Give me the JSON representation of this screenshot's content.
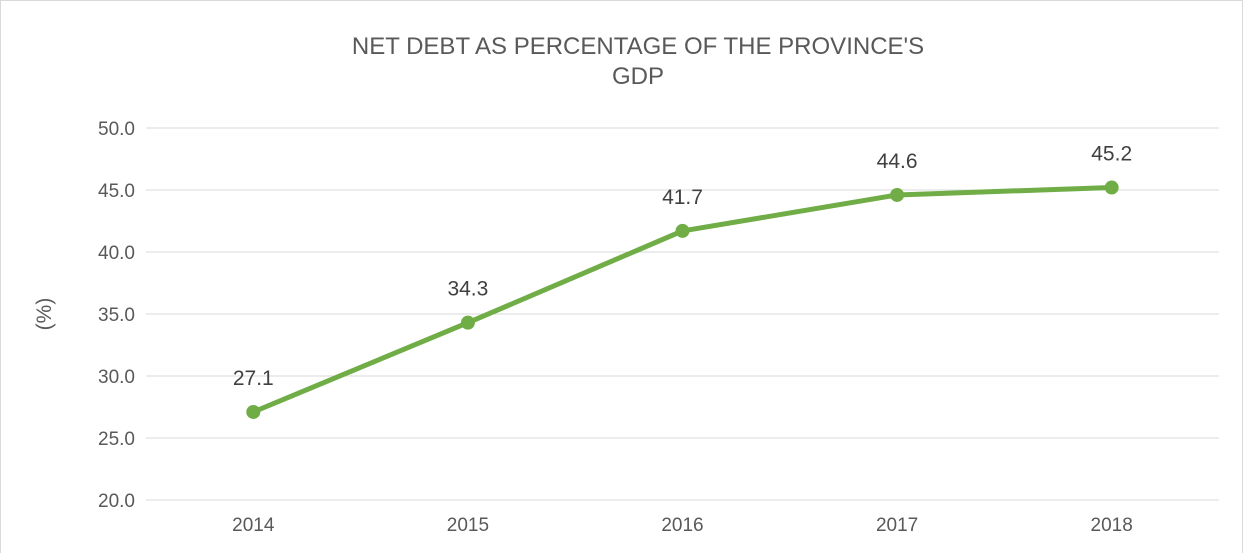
{
  "chart_data": {
    "type": "line",
    "title_lines": [
      "NET DEBT AS PERCENTAGE OF THE PROVINCE'S",
      "GDP"
    ],
    "xlabel": "",
    "ylabel": "(%)",
    "categories": [
      "2014",
      "2015",
      "2016",
      "2017",
      "2018"
    ],
    "series": [
      {
        "values": [
          27.1,
          34.3,
          41.7,
          44.6,
          45.2
        ],
        "labels": [
          "27.1",
          "34.3",
          "41.7",
          "44.6",
          "45.2"
        ],
        "color": "#70ad47"
      }
    ],
    "ylim": [
      20,
      50
    ],
    "yticks": [
      "20.0",
      "25.0",
      "30.0",
      "35.0",
      "40.0",
      "45.0",
      "50.0"
    ],
    "grid": true,
    "legend": "none"
  }
}
